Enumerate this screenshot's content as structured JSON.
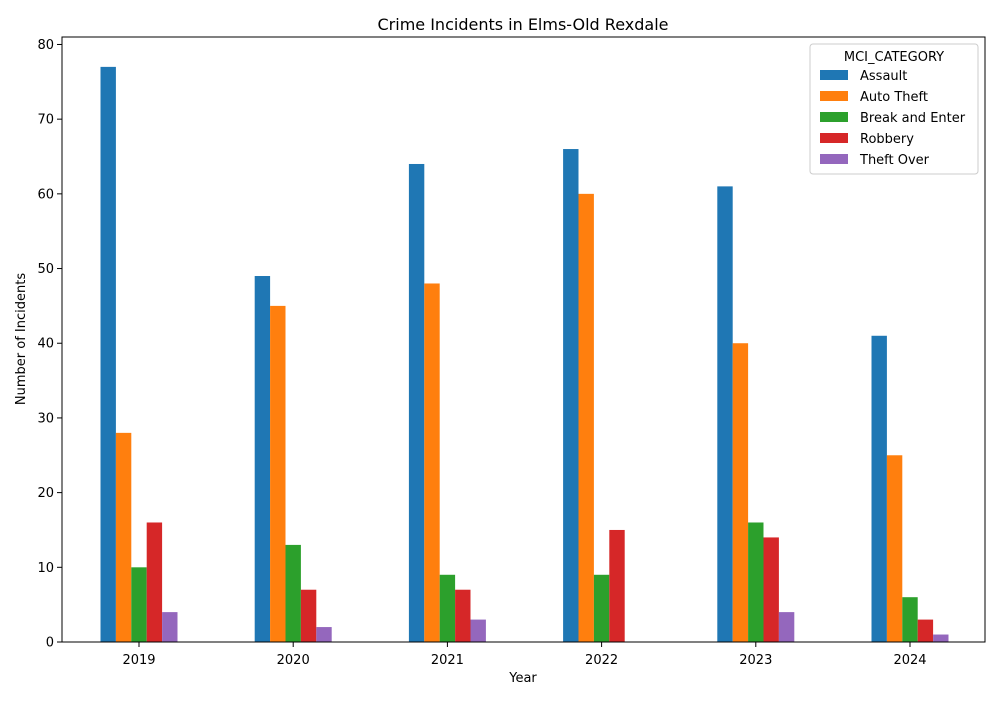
{
  "chart_data": {
    "type": "bar",
    "title": "Crime Incidents in Elms-Old Rexdale",
    "xlabel": "Year",
    "ylabel": "Number of Incidents",
    "categories": [
      "2019",
      "2020",
      "2021",
      "2022",
      "2023",
      "2024"
    ],
    "ylim": [
      0,
      81
    ],
    "yticks": [
      0,
      10,
      20,
      30,
      40,
      50,
      60,
      70,
      80
    ],
    "grid": false,
    "legend": {
      "title": "MCI_CATEGORY",
      "position": "top-right"
    },
    "series": [
      {
        "name": "Assault",
        "color": "#1f77b4",
        "values": [
          77,
          49,
          64,
          66,
          61,
          41
        ]
      },
      {
        "name": "Auto Theft",
        "color": "#ff7f0e",
        "values": [
          28,
          45,
          48,
          60,
          40,
          25
        ]
      },
      {
        "name": "Break and Enter",
        "color": "#2ca02c",
        "values": [
          10,
          13,
          9,
          9,
          16,
          6
        ]
      },
      {
        "name": "Robbery",
        "color": "#d62728",
        "values": [
          16,
          7,
          7,
          15,
          14,
          3
        ]
      },
      {
        "name": "Theft Over",
        "color": "#9467bd",
        "values": [
          4,
          2,
          3,
          0,
          4,
          1
        ]
      }
    ]
  }
}
